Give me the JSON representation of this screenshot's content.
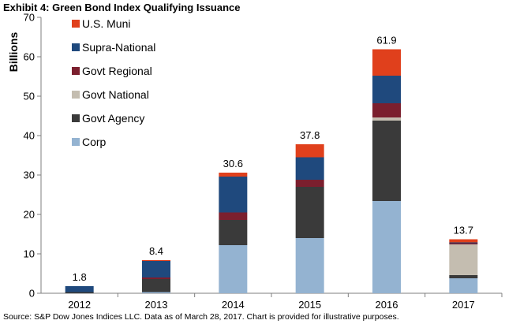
{
  "title": "Exhibit 4: Green Bond Index Qualifying Issuance",
  "source": "Source: S&P Dow Jones Indices LLC.  Data as of March 28, 2017.  Chart is provided for illustrative purposes.",
  "colors": {
    "U.S. Muni": "#e0401c",
    "Supra-National": "#1f497d",
    "Govt Regional": "#7b1f2e",
    "Govt National": "#c4bdb0",
    "Govt Agency": "#3a3a3a",
    "Corp": "#94b3d1"
  },
  "chart_data": {
    "type": "bar",
    "stacked": true,
    "ylabel": "Billions",
    "ylim": [
      0,
      70
    ],
    "yticks": [
      0,
      10,
      20,
      30,
      40,
      50,
      60,
      70
    ],
    "grid": false,
    "legend_position": "top-left",
    "categories": [
      "2012",
      "2013",
      "2014",
      "2015",
      "2016",
      "2017"
    ],
    "totals": [
      "1.8",
      "8.4",
      "30.6",
      "37.8",
      "61.9",
      "13.7"
    ],
    "series": [
      {
        "name": "Corp",
        "values": [
          0.0,
          0.3,
          12.2,
          14.0,
          23.4,
          3.8
        ]
      },
      {
        "name": "Govt Agency",
        "values": [
          0.3,
          3.3,
          6.4,
          13.0,
          20.4,
          0.8
        ]
      },
      {
        "name": "Govt National",
        "values": [
          0.0,
          0.0,
          0.0,
          0.0,
          0.8,
          7.8
        ]
      },
      {
        "name": "Govt Regional",
        "values": [
          0.0,
          0.4,
          1.9,
          1.8,
          3.6,
          0.3
        ]
      },
      {
        "name": "Supra-National",
        "values": [
          1.5,
          4.2,
          9.1,
          5.7,
          7.0,
          0.2
        ]
      },
      {
        "name": "U.S. Muni",
        "values": [
          0.0,
          0.2,
          1.0,
          3.3,
          6.7,
          0.8
        ]
      }
    ],
    "legend_order": [
      "U.S. Muni",
      "Supra-National",
      "Govt Regional",
      "Govt National",
      "Govt Agency",
      "Corp"
    ]
  }
}
